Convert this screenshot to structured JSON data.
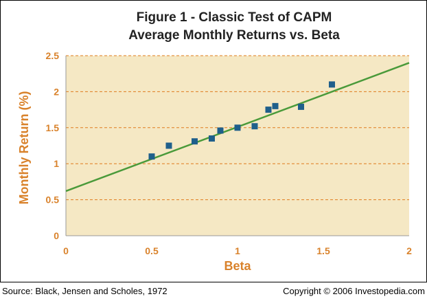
{
  "colors": {
    "title": "#222222",
    "axis_text": "#d9822b",
    "plot_background": "#f5e8c4",
    "gridline": "#e07b1c",
    "point": "#1f5f8b",
    "fit_line": "#4a9a3a",
    "axis_line": "#999999"
  },
  "chart_data": {
    "type": "scatter",
    "title": "Figure 1 - Classic Test of CAPM",
    "subtitle": "Average Monthly Returns vs. Beta",
    "xlabel": "Beta",
    "ylabel": "Monthly Return (%)",
    "xlim": [
      0,
      2
    ],
    "ylim": [
      0,
      2.5
    ],
    "x_ticks": [
      "0",
      "0.5",
      "1",
      "1.5",
      "2"
    ],
    "y_ticks": [
      "0",
      "0.5",
      "1",
      "1.5",
      "2",
      "2.5"
    ],
    "grid": "horizontal dashed",
    "legend": "none",
    "points": [
      {
        "x": 0.5,
        "y": 1.1
      },
      {
        "x": 0.6,
        "y": 1.25
      },
      {
        "x": 0.75,
        "y": 1.31
      },
      {
        "x": 0.85,
        "y": 1.35
      },
      {
        "x": 0.9,
        "y": 1.46
      },
      {
        "x": 1.0,
        "y": 1.5
      },
      {
        "x": 1.1,
        "y": 1.52
      },
      {
        "x": 1.18,
        "y": 1.75
      },
      {
        "x": 1.22,
        "y": 1.8
      },
      {
        "x": 1.37,
        "y": 1.79
      },
      {
        "x": 1.55,
        "y": 2.1
      }
    ],
    "fit_line": {
      "x": [
        0,
        2
      ],
      "y": [
        0.62,
        2.4
      ]
    }
  },
  "footer": {
    "source": "Source: Black, Jensen and Scholes, 1972",
    "copyright": "Copyright © 2006 Investopedia.com"
  }
}
